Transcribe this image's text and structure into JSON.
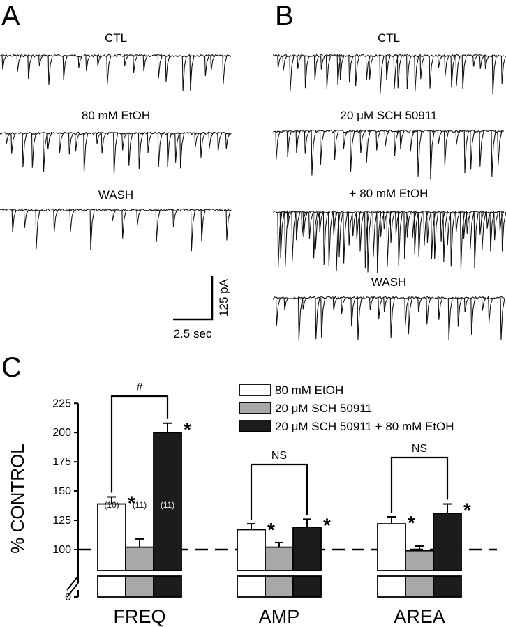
{
  "panel_a": {
    "letter": "A",
    "traces": [
      {
        "label": "CTL"
      },
      {
        "label": "80 mM EtOH"
      },
      {
        "label": "WASH"
      }
    ]
  },
  "panel_b": {
    "letter": "B",
    "traces": [
      {
        "label": "CTL"
      },
      {
        "label": "20 μM SCH 50911"
      },
      {
        "label": "+ 80 mM EtOH"
      },
      {
        "label": "WASH"
      }
    ]
  },
  "scale_bar": {
    "time_label": "2.5 sec",
    "current_label": "125 pA"
  },
  "panel_c": {
    "letter": "C"
  },
  "chart_data": {
    "type": "bar",
    "ylabel": "% CONTROL",
    "ylim": [
      0,
      225
    ],
    "axis_break": true,
    "yticks": [
      "0",
      "100",
      "125",
      "150",
      "175",
      "200",
      "225"
    ],
    "reference_line": 100,
    "categories": [
      "FREQ",
      "AMP",
      "AREA"
    ],
    "series": [
      {
        "name": "80 mM EtOH",
        "color": "#ffffff",
        "values": [
          139,
          117,
          122
        ],
        "errors": [
          6,
          5,
          6
        ]
      },
      {
        "name": "20 μM SCH 50911",
        "color": "#a8a8a8",
        "values": [
          102,
          102,
          99
        ],
        "errors": [
          7,
          4,
          4
        ]
      },
      {
        "name": "20 μM SCH 50911 + 80 mM EtOH",
        "color": "#1c1c1c",
        "values": [
          200,
          119,
          131
        ],
        "errors": [
          8,
          7,
          8
        ]
      }
    ],
    "n_labels": [
      "(10)",
      "(11)",
      "(11)"
    ],
    "significance_brackets": [
      {
        "label": "#"
      },
      {
        "label": "NS"
      },
      {
        "label": "NS"
      }
    ],
    "star_mark": "*"
  }
}
